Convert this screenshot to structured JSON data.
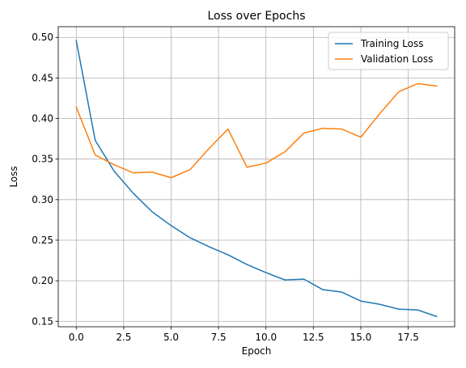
{
  "chart_data": {
    "type": "line",
    "title": "Loss over Epochs",
    "xlabel": "Epoch",
    "ylabel": "Loss",
    "xlim": [
      -0.95,
      19.95
    ],
    "ylim": [
      0.1433,
      0.5132
    ],
    "xticks": [
      0.0,
      2.5,
      5.0,
      7.5,
      10.0,
      12.5,
      15.0,
      17.5
    ],
    "xtick_labels": [
      "0.0",
      "2.5",
      "5.0",
      "7.5",
      "10.0",
      "12.5",
      "15.0",
      "17.5"
    ],
    "yticks": [
      0.15,
      0.2,
      0.25,
      0.3,
      0.35,
      0.4,
      0.45,
      0.5
    ],
    "ytick_labels": [
      "0.15",
      "0.20",
      "0.25",
      "0.30",
      "0.35",
      "0.40",
      "0.45",
      "0.50"
    ],
    "grid": true,
    "legend_position": "top-right",
    "x": [
      0,
      1,
      2,
      3,
      4,
      5,
      6,
      7,
      8,
      9,
      10,
      11,
      12,
      13,
      14,
      15,
      16,
      17,
      18,
      19
    ],
    "series": [
      {
        "name": "Training Loss",
        "color": "#1f77b4",
        "values": [
          0.496,
          0.373,
          0.335,
          0.308,
          0.285,
          0.268,
          0.253,
          0.242,
          0.232,
          0.22,
          0.21,
          0.201,
          0.202,
          0.189,
          0.186,
          0.175,
          0.171,
          0.165,
          0.164,
          0.156
        ]
      },
      {
        "name": "Validation Loss",
        "color": "#ff7f0e",
        "values": [
          0.414,
          0.355,
          0.343,
          0.333,
          0.334,
          0.327,
          0.337,
          0.363,
          0.387,
          0.34,
          0.345,
          0.359,
          0.382,
          0.388,
          0.387,
          0.377,
          0.406,
          0.433,
          0.443,
          0.44
        ]
      }
    ]
  }
}
